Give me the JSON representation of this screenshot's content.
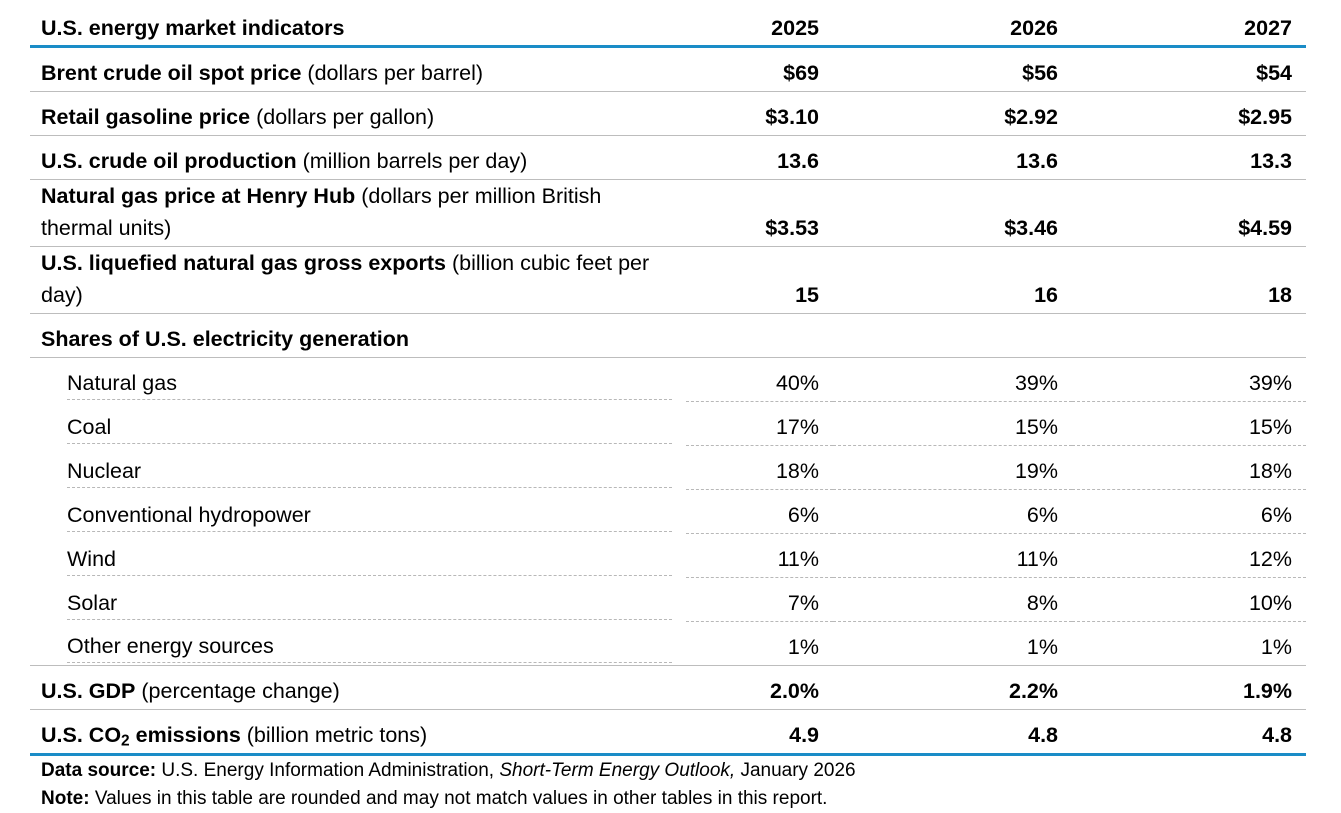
{
  "table": {
    "header": {
      "title": "U.S. energy market indicators",
      "years": [
        "2025",
        "2026",
        "2027"
      ]
    },
    "rows": {
      "brent": {
        "label": "Brent crude oil spot price",
        "unit": " (dollars per barrel)",
        "values": [
          "$69",
          "$56",
          "$54"
        ]
      },
      "gasoline": {
        "label": "Retail gasoline price",
        "unit": " (dollars per gallon)",
        "values": [
          "$3.10",
          "$2.92",
          "$2.95"
        ]
      },
      "crude_production": {
        "label": "U.S. crude oil production",
        "unit": " (million barrels per day)",
        "values": [
          "13.6",
          "13.6",
          "13.3"
        ]
      },
      "henry_hub": {
        "label": "Natural gas price at Henry Hub",
        "unit": " (dollars per million British thermal units)",
        "values": [
          "$3.53",
          "$3.46",
          "$4.59"
        ]
      },
      "lng_exports": {
        "label": "U.S. liquefied natural gas gross exports",
        "unit": " (billion cubic feet per day)",
        "values": [
          "15",
          "16",
          "18"
        ]
      },
      "electricity_shares": {
        "label": "Shares of U.S. electricity generation"
      },
      "natural_gas": {
        "label": "Natural gas",
        "values": [
          "40%",
          "39%",
          "39%"
        ]
      },
      "coal": {
        "label": "Coal",
        "values": [
          "17%",
          "15%",
          "15%"
        ]
      },
      "nuclear": {
        "label": "Nuclear",
        "values": [
          "18%",
          "19%",
          "18%"
        ]
      },
      "hydropower": {
        "label": "Conventional hydropower",
        "values": [
          "6%",
          "6%",
          "6%"
        ]
      },
      "wind": {
        "label": "Wind",
        "values": [
          "11%",
          "11%",
          "12%"
        ]
      },
      "solar": {
        "label": "Solar",
        "values": [
          "7%",
          "8%",
          "10%"
        ]
      },
      "other": {
        "label": "Other energy sources",
        "values": [
          "1%",
          "1%",
          "1%"
        ]
      },
      "gdp": {
        "label": "U.S. GDP",
        "unit": " (percentage change)",
        "values": [
          "2.0%",
          "2.2%",
          "1.9%"
        ]
      },
      "co2": {
        "label_prefix": "U.S. CO",
        "label_subscript": "2",
        "label_suffix": " emissions",
        "unit": " (billion metric tons)",
        "values": [
          "4.9",
          "4.8",
          "4.8"
        ]
      }
    },
    "notes": {
      "source_label": "Data source:",
      "source_text": " U.S. Energy Information Administration, ",
      "source_publication": "Short-Term Energy Outlook,",
      "source_date": " January 2026",
      "note_label": "Note:",
      "note_text": " Values in this table are rounded and may not match values in other tables in this report."
    }
  },
  "chart_data": {
    "type": "table",
    "title": "U.S. energy market indicators",
    "columns": [
      "2025",
      "2026",
      "2027"
    ],
    "rows": [
      {
        "indicator": "Brent crude oil spot price (dollars per barrel)",
        "values": [
          "$69",
          "$56",
          "$54"
        ]
      },
      {
        "indicator": "Retail gasoline price (dollars per gallon)",
        "values": [
          "$3.10",
          "$2.92",
          "$2.95"
        ]
      },
      {
        "indicator": "U.S. crude oil production (million barrels per day)",
        "values": [
          "13.6",
          "13.6",
          "13.3"
        ]
      },
      {
        "indicator": "Natural gas price at Henry Hub (dollars per million British thermal units)",
        "values": [
          "$3.53",
          "$3.46",
          "$4.59"
        ]
      },
      {
        "indicator": "U.S. liquefied natural gas gross exports (billion cubic feet per day)",
        "values": [
          "15",
          "16",
          "18"
        ]
      },
      {
        "indicator": "Natural gas",
        "group": "Shares of U.S. electricity generation",
        "values": [
          "40%",
          "39%",
          "39%"
        ]
      },
      {
        "indicator": "Coal",
        "group": "Shares of U.S. electricity generation",
        "values": [
          "17%",
          "15%",
          "15%"
        ]
      },
      {
        "indicator": "Nuclear",
        "group": "Shares of U.S. electricity generation",
        "values": [
          "18%",
          "19%",
          "18%"
        ]
      },
      {
        "indicator": "Conventional hydropower",
        "group": "Shares of U.S. electricity generation",
        "values": [
          "6%",
          "6%",
          "6%"
        ]
      },
      {
        "indicator": "Wind",
        "group": "Shares of U.S. electricity generation",
        "values": [
          "11%",
          "11%",
          "12%"
        ]
      },
      {
        "indicator": "Solar",
        "group": "Shares of U.S. electricity generation",
        "values": [
          "7%",
          "8%",
          "10%"
        ]
      },
      {
        "indicator": "Other energy sources",
        "group": "Shares of U.S. electricity generation",
        "values": [
          "1%",
          "1%",
          "1%"
        ]
      },
      {
        "indicator": "U.S. GDP (percentage change)",
        "values": [
          "2.0%",
          "2.2%",
          "1.9%"
        ]
      },
      {
        "indicator": "U.S. CO2 emissions (billion metric tons)",
        "values": [
          "4.9",
          "4.8",
          "4.8"
        ]
      }
    ]
  },
  "colors": {
    "accent_rule": "#1a8cc7",
    "divider": "#bdbdbd"
  }
}
